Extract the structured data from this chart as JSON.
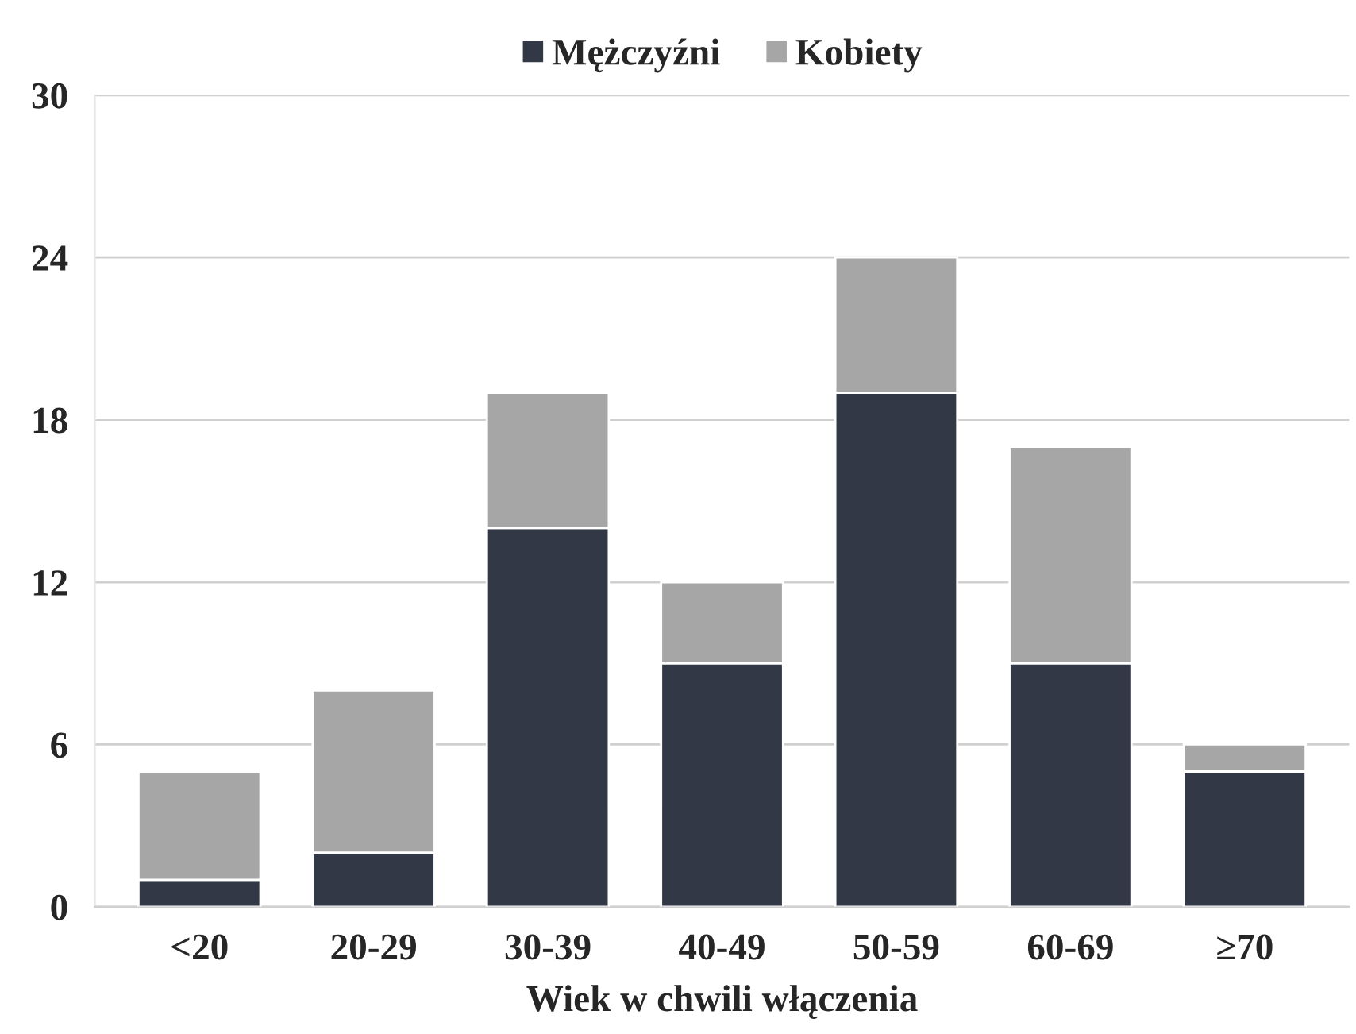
{
  "chart_data": {
    "type": "bar",
    "stacked": true,
    "xlabel": "Wiek w chwili włączenia",
    "categories": [
      "<20",
      "20-29",
      "30-39",
      "40-49",
      "50-59",
      "60-69",
      "≥70"
    ],
    "series": [
      {
        "name": "Mężczyźni",
        "color": "#323846",
        "values": [
          1,
          2,
          14,
          9,
          19,
          9,
          5
        ]
      },
      {
        "name": "Kobiety",
        "color": "#a6a6a6",
        "values": [
          4,
          6,
          5,
          3,
          5,
          8,
          1
        ]
      }
    ],
    "ylim": [
      0,
      30
    ],
    "yticks": [
      0,
      6,
      12,
      18,
      24,
      30
    ],
    "grid": "y",
    "legend": "top"
  }
}
